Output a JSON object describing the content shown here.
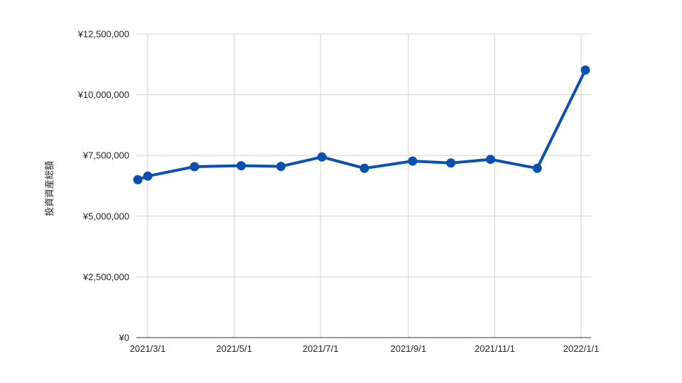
{
  "chart_data": {
    "type": "line",
    "title": "",
    "xlabel": "",
    "ylabel": "投資資産総額",
    "ylim": [
      0,
      12500000
    ],
    "yticks": [
      0,
      2500000,
      5000000,
      7500000,
      10000000,
      12500000
    ],
    "ytick_labels": [
      "¥0",
      "¥2,500,000",
      "¥5,000,000",
      "¥7,500,000",
      "¥10,000,000",
      "¥12,500,000"
    ],
    "xlim": [
      "2021-02-21",
      "2022-01-08"
    ],
    "xticks": [
      "2021-03-01",
      "2021-05-01",
      "2021-07-01",
      "2021-09-01",
      "2021-11-01",
      "2022-01-01"
    ],
    "xtick_labels": [
      "2021/3/1",
      "2021/5/1",
      "2021/7/1",
      "2021/9/1",
      "2021/11/1",
      "2022/1/1"
    ],
    "grid": true,
    "legend": "none",
    "series": [
      {
        "color": "#0b50ae",
        "points": [
          {
            "x": "2021-02-22",
            "y": 6500000
          },
          {
            "x": "2021-03-01",
            "y": 6650000
          },
          {
            "x": "2021-04-03",
            "y": 7040000
          },
          {
            "x": "2021-05-06",
            "y": 7080000
          },
          {
            "x": "2021-06-03",
            "y": 7050000
          },
          {
            "x": "2021-07-02",
            "y": 7440000
          },
          {
            "x": "2021-08-01",
            "y": 6970000
          },
          {
            "x": "2021-09-04",
            "y": 7270000
          },
          {
            "x": "2021-10-01",
            "y": 7190000
          },
          {
            "x": "2021-10-29",
            "y": 7340000
          },
          {
            "x": "2021-12-01",
            "y": 6970000
          },
          {
            "x": "2022-01-04",
            "y": 11020000
          }
        ]
      }
    ]
  }
}
